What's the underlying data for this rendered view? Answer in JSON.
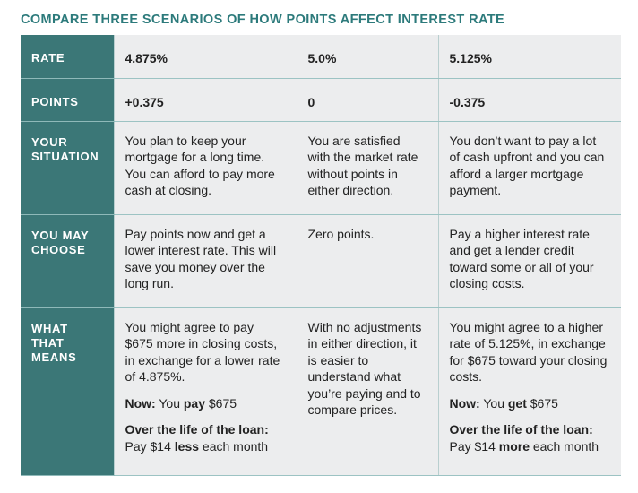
{
  "title": "COMPARE THREE SCENARIOS OF HOW POINTS AFFECT INTEREST RATE",
  "rows": {
    "rate": {
      "label": "RATE",
      "values": [
        "4.875%",
        "5.0%",
        "5.125%"
      ]
    },
    "points": {
      "label": "POINTS",
      "values": [
        "+0.375",
        "0",
        "-0.375"
      ]
    },
    "situation": {
      "label": "YOUR SITUATION",
      "values": [
        "You plan to keep your mortgage for a long time. You can afford to pay more cash at closing.",
        "You are satisfied with the market rate without points in either direction.",
        "You don’t want to pay a lot of cash upfront and you can afford a larger mortgage payment."
      ]
    },
    "choose": {
      "label": "YOU MAY CHOOSE",
      "values": [
        "Pay points now and get a lower interest rate. This will save you money over the long run.",
        "Zero points.",
        "Pay a higher interest rate and get a lender credit toward some or all of your closing costs."
      ]
    },
    "means": {
      "label": "WHAT THAT MEANS",
      "col1": {
        "text": "You might agree to pay $675 more in closing costs, in exchange for a lower rate of 4.875%.",
        "now_label": "Now:",
        "now_pre": " You ",
        "now_bold": "pay",
        "now_post": " $675",
        "life_label": "Over the life of the loan:",
        "life_pre": "Pay $14 ",
        "life_bold": "less",
        "life_post": " each month"
      },
      "col2": {
        "text": "With no adjustments in either direction, it is easier to understand what you’re paying and to compare prices."
      },
      "col3": {
        "text": "You might agree to a higher rate of 5.125%, in exchange for $675 toward your closing costs.",
        "now_label": "Now:",
        "now_pre": " You ",
        "now_bold": "get",
        "now_post": " $675",
        "life_label": "Over the life of the loan:",
        "life_pre": "Pay $14 ",
        "life_bold": "more",
        "life_post": " each month"
      }
    }
  }
}
